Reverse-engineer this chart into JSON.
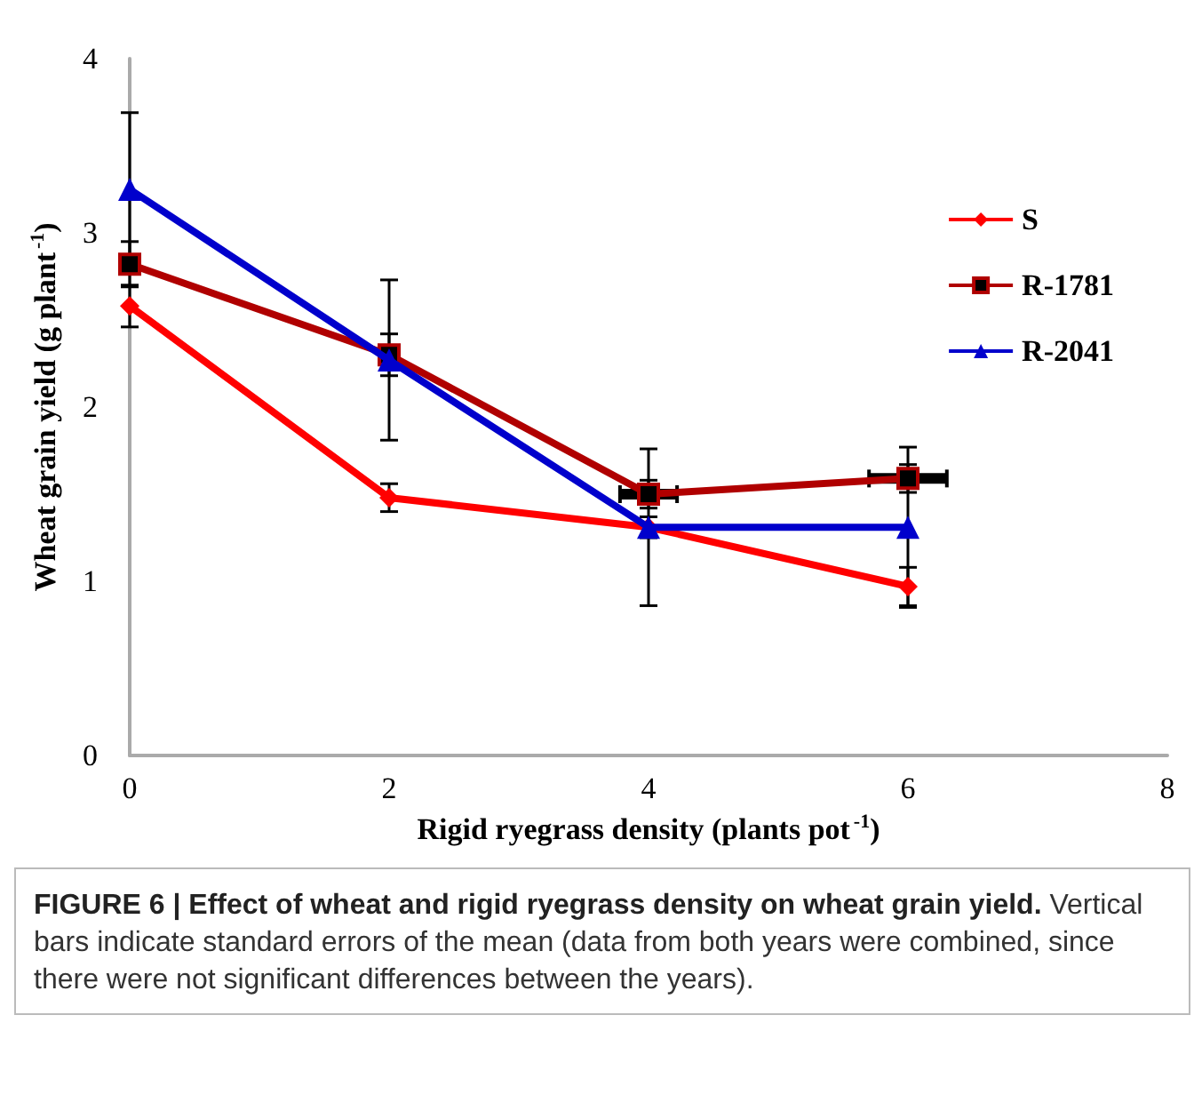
{
  "chart_data": {
    "type": "line",
    "title": "FIGURE 6 | Effect of wheat and rigid ryegrass density on wheat grain yield.",
    "annotations": [
      "Vertical bars indicate standard errors of the mean (data from both years were combined, since there were not significant differences between the years)."
    ],
    "xlabel": "Rigid ryegrass density (plants pot$^{-1}$)",
    "ylabel": "Wheat grain yield (g plant$^{-1}$)",
    "x": [
      0,
      2,
      4,
      6
    ],
    "series": [
      {
        "name": "S",
        "color": "#ff0000",
        "marker": "diamond",
        "values": [
          2.58,
          1.48,
          1.31,
          0.97
        ],
        "errors": [
          0.12,
          0.08,
          0.06,
          0.11
        ]
      },
      {
        "name": "R-1781",
        "color": "#b00000",
        "marker": "square",
        "values": [
          2.82,
          2.3,
          1.5,
          1.59
        ],
        "errors": [
          0.13,
          0.12,
          0.08,
          0.08
        ],
        "xerrors": [
          null,
          0.05,
          0.22,
          0.3
        ]
      },
      {
        "name": "R-2041",
        "color": "#0000cc",
        "marker": "triangle",
        "values": [
          3.25,
          2.27,
          1.31,
          1.31
        ],
        "errors": [
          0.44,
          0.46,
          0.45,
          0.46
        ]
      }
    ],
    "xlim": [
      0,
      8
    ],
    "xticks": [
      0,
      2,
      4,
      6,
      8
    ],
    "ylim": [
      0,
      4
    ],
    "yticks": [
      0,
      1,
      2,
      3,
      4
    ],
    "grid": false,
    "legend": "top right",
    "line_style": "solid"
  }
}
